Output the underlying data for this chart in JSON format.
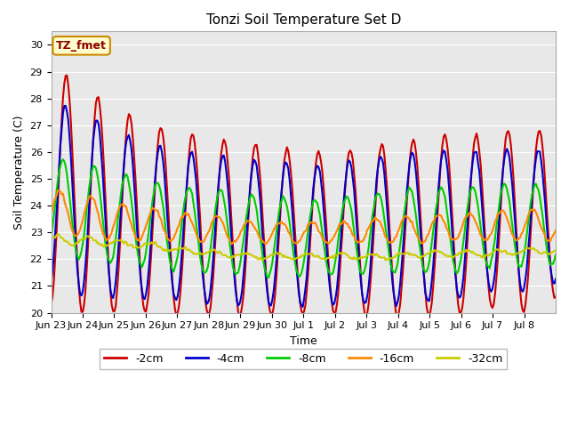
{
  "title": "Tonzi Soil Temperature Set D",
  "xlabel": "Time",
  "ylabel": "Soil Temperature (C)",
  "ylim": [
    20.0,
    30.5
  ],
  "yticks": [
    20.0,
    21.0,
    22.0,
    23.0,
    24.0,
    25.0,
    26.0,
    27.0,
    28.0,
    29.0,
    30.0
  ],
  "background_color": "#e8e8e8",
  "plot_bg_color": "#e8e8e8",
  "series_colors": {
    "-2cm": "#cc0000",
    "-4cm": "#0000cc",
    "-8cm": "#00cc00",
    "-16cm": "#ff8800",
    "-32cm": "#cccc00"
  },
  "legend_label": "TZ_fmet",
  "legend_bg": "#ffffcc",
  "legend_border": "#cc8800",
  "line_width": 1.5,
  "xtick_labels": [
    "Jun 23",
    "Jun 24",
    "Jun 25",
    "Jun 26",
    "Jun 27",
    "Jun 28",
    "Jun 29",
    "Jun 30",
    "Jul 1",
    "Jul 2",
    "Jul 3",
    "Jul 4",
    "Jul 5",
    "Jul 6",
    "Jul 7",
    "Jul 8"
  ],
  "num_points": 384
}
